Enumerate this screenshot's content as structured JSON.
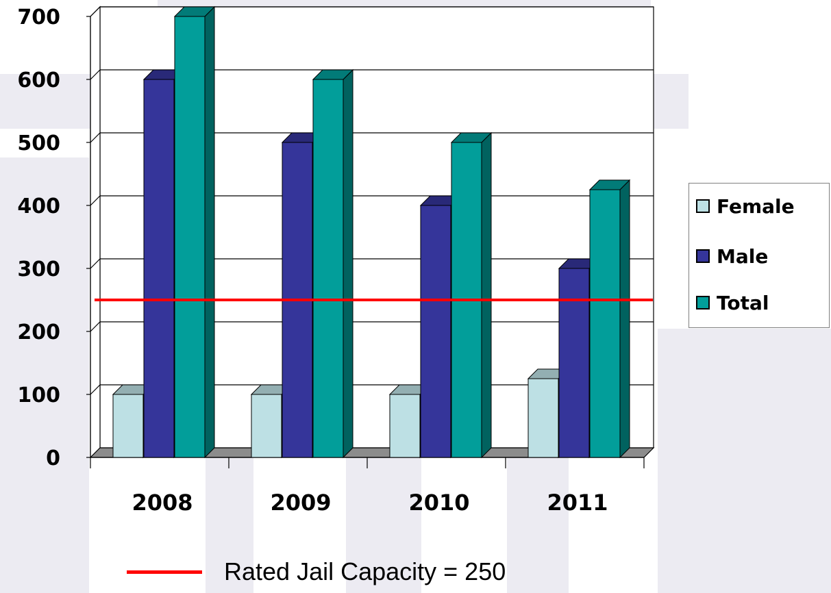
{
  "chart_data": {
    "type": "bar",
    "style": "3d-clustered-column",
    "categories": [
      "2008",
      "2009",
      "2010",
      "2011"
    ],
    "series": [
      {
        "name": "Female",
        "color": "#bde0e4",
        "values": [
          100,
          100,
          100,
          125
        ]
      },
      {
        "name": "Male",
        "color": "#35359a",
        "values": [
          600,
          500,
          400,
          300
        ]
      },
      {
        "name": "Total",
        "color": "#029e9a",
        "values": [
          700,
          600,
          500,
          425
        ]
      }
    ],
    "ylim": [
      0,
      700
    ],
    "yticks": [
      "0",
      "100",
      "200",
      "300",
      "400",
      "500",
      "600",
      "700"
    ],
    "grid": true,
    "legend_position": "right",
    "reference_line": {
      "value": 250,
      "color": "#ff0000",
      "label": "Rated Jail Capacity = 250"
    },
    "title": "",
    "xlabel": "",
    "ylabel": ""
  },
  "legend": {
    "female": "Female",
    "male": "Male",
    "total": "Total"
  },
  "footnote": {
    "text": "Rated Jail Capacity = 250"
  }
}
